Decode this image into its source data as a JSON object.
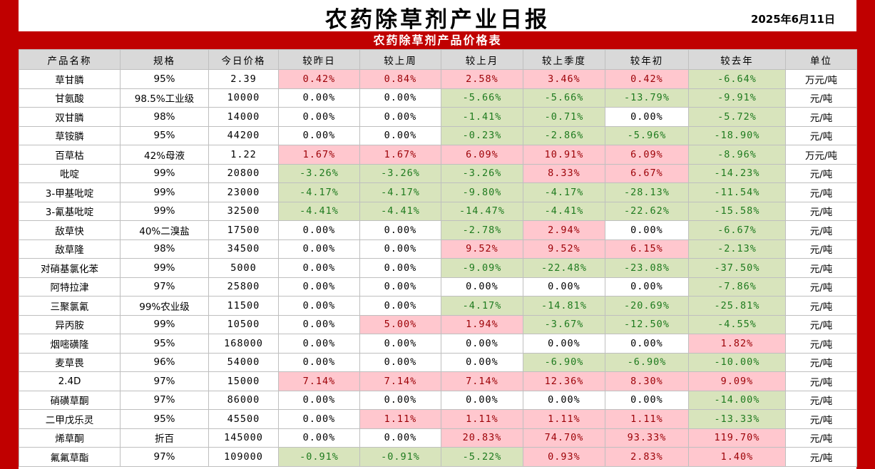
{
  "title": "农药除草剂产业日报",
  "date": "2025年6月11日",
  "subtitle": "农药除草剂产品价格表",
  "colors": {
    "up_bg": "#ffc7ce",
    "up_fg": "#9c0006",
    "down_bg": "#d8e4bc",
    "down_fg": "#1e7a1e",
    "accent": "#c00000"
  },
  "columns": [
    "产品名称",
    "规格",
    "今日价格",
    "较昨日",
    "较上周",
    "较上月",
    "较上季度",
    "较年初",
    "较去年",
    "单位"
  ],
  "rows": [
    [
      "草甘膦",
      "95%",
      "2.39",
      "0.42%",
      "0.84%",
      "2.58%",
      "3.46%",
      "0.42%",
      "-6.64%",
      "万元/吨"
    ],
    [
      "甘氨酸",
      "98.5%工业级",
      "10000",
      "0.00%",
      "0.00%",
      "-5.66%",
      "-5.66%",
      "-13.79%",
      "-9.91%",
      "元/吨"
    ],
    [
      "双甘膦",
      "98%",
      "14000",
      "0.00%",
      "0.00%",
      "-1.41%",
      "-0.71%",
      "0.00%",
      "-5.72%",
      "元/吨"
    ],
    [
      "草铵膦",
      "95%",
      "44200",
      "0.00%",
      "0.00%",
      "-0.23%",
      "-2.86%",
      "-5.96%",
      "-18.90%",
      "元/吨"
    ],
    [
      "百草枯",
      "42%母液",
      "1.22",
      "1.67%",
      "1.67%",
      "6.09%",
      "10.91%",
      "6.09%",
      "-8.96%",
      "万元/吨"
    ],
    [
      "吡啶",
      "99%",
      "20800",
      "-3.26%",
      "-3.26%",
      "-3.26%",
      "8.33%",
      "6.67%",
      "-14.23%",
      "元/吨"
    ],
    [
      "3-甲基吡啶",
      "99%",
      "23000",
      "-4.17%",
      "-4.17%",
      "-9.80%",
      "-4.17%",
      "-28.13%",
      "-11.54%",
      "元/吨"
    ],
    [
      "3-氰基吡啶",
      "99%",
      "32500",
      "-4.41%",
      "-4.41%",
      "-14.47%",
      "-4.41%",
      "-22.62%",
      "-15.58%",
      "元/吨"
    ],
    [
      "敌草快",
      "40%二溴盐",
      "17500",
      "0.00%",
      "0.00%",
      "-2.78%",
      "2.94%",
      "0.00%",
      "-6.67%",
      "元/吨"
    ],
    [
      "敌草隆",
      "98%",
      "34500",
      "0.00%",
      "0.00%",
      "9.52%",
      "9.52%",
      "6.15%",
      "-2.13%",
      "元/吨"
    ],
    [
      "对硝基氯化苯",
      "99%",
      "5000",
      "0.00%",
      "0.00%",
      "-9.09%",
      "-22.48%",
      "-23.08%",
      "-37.50%",
      "元/吨"
    ],
    [
      "阿特拉津",
      "97%",
      "25800",
      "0.00%",
      "0.00%",
      "0.00%",
      "0.00%",
      "0.00%",
      "-7.86%",
      "元/吨"
    ],
    [
      "三聚氯氰",
      "99%农业级",
      "11500",
      "0.00%",
      "0.00%",
      "-4.17%",
      "-14.81%",
      "-20.69%",
      "-25.81%",
      "元/吨"
    ],
    [
      "异丙胺",
      "99%",
      "10500",
      "0.00%",
      "5.00%",
      "1.94%",
      "-3.67%",
      "-12.50%",
      "-4.55%",
      "元/吨"
    ],
    [
      "烟嘧磺隆",
      "95%",
      "168000",
      "0.00%",
      "0.00%",
      "0.00%",
      "0.00%",
      "0.00%",
      "1.82%",
      "元/吨"
    ],
    [
      "麦草畏",
      "96%",
      "54000",
      "0.00%",
      "0.00%",
      "0.00%",
      "-6.90%",
      "-6.90%",
      "-10.00%",
      "元/吨"
    ],
    [
      "2.4D",
      "97%",
      "15000",
      "7.14%",
      "7.14%",
      "7.14%",
      "12.36%",
      "8.30%",
      "9.09%",
      "元/吨"
    ],
    [
      "硝磺草酮",
      "97%",
      "86000",
      "0.00%",
      "0.00%",
      "0.00%",
      "0.00%",
      "0.00%",
      "-14.00%",
      "元/吨"
    ],
    [
      "二甲戊乐灵",
      "95%",
      "45500",
      "0.00%",
      "1.11%",
      "1.11%",
      "1.11%",
      "1.11%",
      "-13.33%",
      "元/吨"
    ],
    [
      "烯草酮",
      "折百",
      "145000",
      "0.00%",
      "0.00%",
      "20.83%",
      "74.70%",
      "93.33%",
      "119.70%",
      "元/吨"
    ],
    [
      "氟氟草酯",
      "97%",
      "109000",
      "-0.91%",
      "-0.91%",
      "-5.22%",
      "0.93%",
      "2.83%",
      "1.40%",
      "元/吨"
    ]
  ]
}
